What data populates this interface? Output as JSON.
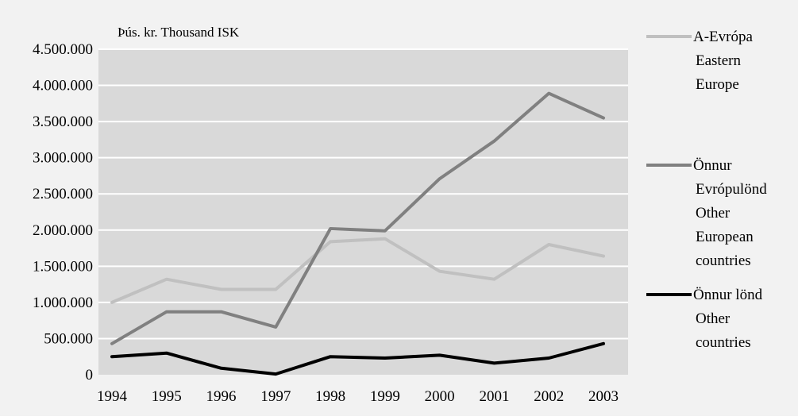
{
  "chart_data": {
    "type": "line",
    "unit_label": "Þús. kr.  Thousand ISK",
    "categories": [
      "1994",
      "1995",
      "1996",
      "1997",
      "1998",
      "1999",
      "2000",
      "2001",
      "2002",
      "2003"
    ],
    "ylim": [
      0,
      4500000
    ],
    "yticks": [
      0,
      500000,
      1000000,
      1500000,
      2000000,
      2500000,
      3000000,
      3500000,
      4000000,
      4500000
    ],
    "ytick_labels": [
      "0",
      "500.000",
      "1.000.000",
      "1.500.000",
      "2.000.000",
      "2.500.000",
      "3.000.000",
      "3.500.000",
      "4.000.000",
      "4.500.000"
    ],
    "grid": true,
    "legend_position": "right",
    "series": [
      {
        "name_lines": [
          "A-Evrópa",
          "Eastern",
          "Europe"
        ],
        "color": "#c0c0c0",
        "values": [
          1000000,
          1320000,
          1180000,
          1180000,
          1840000,
          1880000,
          1430000,
          1320000,
          1800000,
          1640000
        ]
      },
      {
        "name_lines": [
          "Önnur",
          "Evrópulönd",
          "Other",
          "European",
          "countries"
        ],
        "color": "#808080",
        "values": [
          430000,
          870000,
          870000,
          660000,
          2020000,
          1990000,
          2710000,
          3230000,
          3890000,
          3550000
        ]
      },
      {
        "name_lines": [
          "Önnur lönd",
          "Other",
          "countries"
        ],
        "color": "#000000",
        "values": [
          250000,
          300000,
          90000,
          10000,
          250000,
          230000,
          270000,
          160000,
          230000,
          430000
        ]
      }
    ]
  }
}
